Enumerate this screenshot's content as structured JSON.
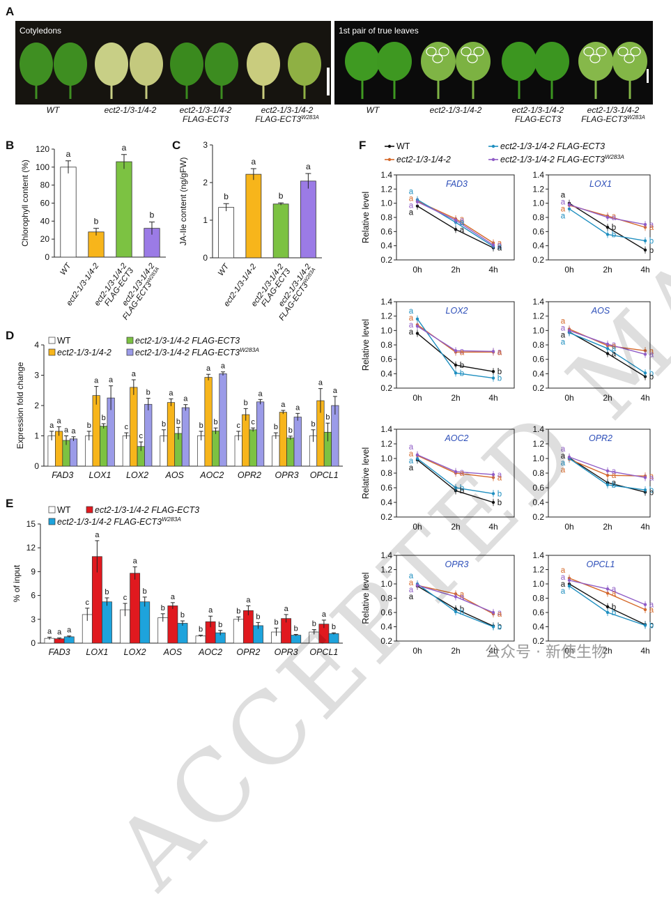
{
  "panel_letters": {
    "A": "A",
    "B": "B",
    "C": "C",
    "D": "D",
    "E": "E",
    "F": "F"
  },
  "panel_A": {
    "left_title": "Cotyledons",
    "right_title": "1st pair of true leaves",
    "labels_left": [
      {
        "l1": "WT",
        "l2": "",
        "l3": ""
      },
      {
        "l1": "ect2-1/3-1/4-2",
        "l2": "",
        "l3": ""
      },
      {
        "l1": "ect2-1/3-1/4-2",
        "l2": "FLAG-ECT3",
        "l3": ""
      },
      {
        "l1": "ect2-1/3-1/4-2",
        "l2": "FLAG-ECT3",
        "l3": "W283A"
      }
    ],
    "labels_right": [
      {
        "l1": "WT",
        "l2": "",
        "l3": ""
      },
      {
        "l1": "ect2-1/3-1/4-2",
        "l2": "",
        "l3": ""
      },
      {
        "l1": "ect2-1/3-1/4-2",
        "l2": "FLAG-ECT3",
        "l3": ""
      },
      {
        "l1": "ect2-1/3-1/4-2",
        "l2": "FLAG-ECT3",
        "l3": "W283A"
      }
    ],
    "leaf_pairs_left": [
      {
        "c1": "#3f8f22",
        "c2": "#3e8e21"
      },
      {
        "c1": "#c8cf86",
        "c2": "#c4c97e"
      },
      {
        "c1": "#3a8a1e",
        "c2": "#3c8c20"
      },
      {
        "c1": "#c9cc7e",
        "c2": "#8fb044"
      }
    ],
    "leaf_pairs_right": [
      {
        "c1": "#3f9a22",
        "c2": "#3e9821",
        "spots": 0
      },
      {
        "c1": "#7fb445",
        "c2": "#7cb242",
        "spots": 3
      },
      {
        "c1": "#3c9620",
        "c2": "#3b9520",
        "spots": 0
      },
      {
        "c1": "#86b84a",
        "c2": "#83b647",
        "spots": 3
      }
    ]
  },
  "chart_data": [
    {
      "panel": "B",
      "type": "bar",
      "ylabel": "Chlorophyll content (%)",
      "ylim": [
        0,
        120
      ],
      "yticks": [
        0,
        20,
        40,
        60,
        80,
        100,
        120
      ],
      "categories": [
        {
          "l1": "WT",
          "l2": "",
          "l3": ""
        },
        {
          "l1": "ect2-1/3-1/4-2",
          "l2": "",
          "l3": ""
        },
        {
          "l1": "ect2-1/3-1/4-2",
          "l2": "FLAG-ECT3",
          "l3": ""
        },
        {
          "l1": "ect2-1/3-1/4-2",
          "l2": "FLAG-ECT3",
          "l3": "W283A"
        }
      ],
      "values": [
        100,
        28,
        106,
        32
      ],
      "errors": [
        7,
        4,
        8,
        7
      ],
      "letters": [
        "a",
        "b",
        "a",
        "b"
      ],
      "colors": [
        "#ffffff",
        "#f7b51b",
        "#7cc242",
        "#9b7be6"
      ]
    },
    {
      "panel": "C",
      "type": "bar",
      "ylabel": "JA-Ile content (ng/gFW)",
      "ylim": [
        0,
        3
      ],
      "yticks": [
        0,
        1,
        2,
        3
      ],
      "categories": [
        {
          "l1": "WT",
          "l2": "",
          "l3": ""
        },
        {
          "l1": "ect2-1/3-1/4-2",
          "l2": "",
          "l3": ""
        },
        {
          "l1": "ect2-1/3-1/4-2",
          "l2": "FLAG-ECT3",
          "l3": ""
        },
        {
          "l1": "ect2-1/3-1/4-2",
          "l2": "FLAG-ECT3",
          "l3": "W283A"
        }
      ],
      "values": [
        1.34,
        2.22,
        1.43,
        2.04
      ],
      "errors": [
        0.1,
        0.15,
        0.03,
        0.2
      ],
      "letters": [
        "b",
        "a",
        "b",
        "a"
      ],
      "colors": [
        "#ffffff",
        "#f7b51b",
        "#7cc242",
        "#9b7be6"
      ]
    },
    {
      "panel": "D",
      "type": "bar",
      "ylabel": "Expression fold change",
      "ylim": [
        0,
        4
      ],
      "yticks": [
        0,
        1,
        2,
        3,
        4
      ],
      "categories": [
        "FAD3",
        "LOX1",
        "LOX2",
        "AOS",
        "AOC2",
        "OPR2",
        "OPR3",
        "OPCL1"
      ],
      "series": [
        {
          "name": "WT",
          "color": "#ffffff",
          "values": [
            1.0,
            1.0,
            1.0,
            1.0,
            1.0,
            1.0,
            1.0,
            1.0
          ],
          "errors": [
            0.15,
            0.15,
            0.1,
            0.2,
            0.15,
            0.15,
            0.1,
            0.2
          ],
          "letters": [
            "a",
            "b",
            "c",
            "b",
            "b",
            "c",
            "b",
            "b"
          ]
        },
        {
          "name": "ect2-1/3-1/4-2",
          "color": "#f7b51b",
          "values": [
            1.15,
            2.33,
            2.6,
            2.1,
            2.93,
            1.7,
            1.78,
            2.16
          ],
          "errors": [
            0.15,
            0.3,
            0.25,
            0.12,
            0.1,
            0.2,
            0.06,
            0.4
          ],
          "letters": [
            "a",
            "a",
            "a",
            "a",
            "a",
            "b",
            "a",
            "a"
          ]
        },
        {
          "name": "ect2-1/3-1/4-2 FLAG-ECT3",
          "color": "#7cc242",
          "values": [
            0.85,
            1.32,
            0.65,
            1.08,
            1.16,
            1.2,
            0.93,
            1.12
          ],
          "errors": [
            0.15,
            0.08,
            0.15,
            0.2,
            0.1,
            0.06,
            0.06,
            0.3
          ],
          "letters": [
            "a",
            "b",
            "c",
            "b",
            "b",
            "c",
            "b",
            "b"
          ]
        },
        {
          "name": "ect2-1/3-1/4-2 FLAG-ECT3W283A",
          "color": "#9b9be8",
          "values": [
            0.9,
            2.25,
            2.04,
            1.93,
            3.05,
            2.12,
            1.62,
            2.0
          ],
          "errors": [
            0.07,
            0.4,
            0.2,
            0.1,
            0.06,
            0.08,
            0.12,
            0.3
          ],
          "letters": [
            "a",
            "a",
            "b",
            "a",
            "a",
            "a",
            "a",
            "a"
          ]
        }
      ]
    },
    {
      "panel": "E",
      "type": "bar",
      "ylabel": "% of input",
      "ylim": [
        0,
        15
      ],
      "yticks": [
        0,
        3,
        6,
        9,
        12,
        15
      ],
      "categories": [
        "FAD3",
        "LOX1",
        "LOX2",
        "AOS",
        "AOC2",
        "OPR2",
        "OPR3",
        "OPCL1"
      ],
      "series": [
        {
          "name": "WT",
          "color": "#ffffff",
          "values": [
            0.6,
            3.6,
            4.2,
            3.2,
            0.9,
            3.0,
            1.4,
            1.4
          ],
          "errors": [
            0.15,
            0.8,
            0.8,
            0.5,
            0.1,
            0.3,
            0.5,
            0.3
          ],
          "letters": [
            "a",
            "c",
            "c",
            "b",
            "b",
            "b",
            "b",
            "b"
          ]
        },
        {
          "name": "ect2-1/3-1/4-2 FLAG-ECT3",
          "color": "#e0191f",
          "values": [
            0.55,
            10.9,
            8.8,
            4.7,
            2.7,
            4.1,
            3.1,
            2.4
          ],
          "errors": [
            0.1,
            2.0,
            0.8,
            0.4,
            0.7,
            0.6,
            0.5,
            0.5
          ],
          "letters": [
            "a",
            "a",
            "a",
            "a",
            "a",
            "a",
            "a",
            "a"
          ]
        },
        {
          "name": "ect2-1/3-1/4-2 FLAG-ECT3W283A",
          "color": "#1ea3dc",
          "values": [
            0.8,
            5.2,
            5.2,
            2.5,
            1.3,
            2.2,
            1.0,
            1.2
          ],
          "errors": [
            0.1,
            0.5,
            0.6,
            0.3,
            0.3,
            0.4,
            0.1,
            0.1
          ],
          "letters": [
            "a",
            "b",
            "b",
            "b",
            "b",
            "b",
            "b",
            "b"
          ]
        }
      ]
    },
    {
      "panel": "F",
      "type": "line",
      "ylabel": "Relative level",
      "x": [
        "0h",
        "2h",
        "4h"
      ],
      "ylim": [
        0.2,
        1.4
      ],
      "yticks": [
        0.2,
        0.4,
        0.6,
        0.8,
        1.0,
        1.2,
        1.4
      ],
      "legend": [
        {
          "name": "WT",
          "color": "#111111"
        },
        {
          "name": "ect2-1/3-1/4-2",
          "color": "#d5692a"
        },
        {
          "name": "ect2-1/3-1/4-2 FLAG-ECT3",
          "color": "#1f8fc0"
        },
        {
          "name": "ect2-1/3-1/4-2 FLAG-ECT3W283A",
          "color": "#8f5cc6"
        }
      ],
      "letter_colors": [
        "#111111",
        "#d5692a",
        "#1f8fc0",
        "#8f5cc6"
      ],
      "subplots": [
        {
          "gene": "FAD3",
          "series": [
            [
              0.96,
              0.63,
              0.37
            ],
            [
              1.03,
              0.78,
              0.44
            ],
            [
              1.05,
              0.73,
              0.39
            ],
            [
              1.02,
              0.76,
              0.41
            ]
          ],
          "letters": [
            [
              "a",
              "a",
              "a"
            ],
            [
              "a",
              "a",
              "a"
            ],
            [
              "a",
              "a",
              "a"
            ],
            [
              "a",
              "a",
              "a"
            ]
          ]
        },
        {
          "gene": "LOX1",
          "series": [
            [
              1.0,
              0.66,
              0.34
            ],
            [
              0.97,
              0.82,
              0.66
            ],
            [
              0.92,
              0.56,
              0.47
            ],
            [
              0.98,
              0.8,
              0.7
            ]
          ],
          "letters": [
            [
              "a",
              "b",
              "b"
            ],
            [
              "a",
              "a",
              "a"
            ],
            [
              "a",
              "b",
              "b"
            ],
            [
              "a",
              "a",
              "a"
            ]
          ]
        },
        {
          "gene": "LOX2",
          "series": [
            [
              0.96,
              0.52,
              0.43
            ],
            [
              1.08,
              0.7,
              0.7
            ],
            [
              1.16,
              0.41,
              0.34
            ],
            [
              1.06,
              0.72,
              0.71
            ]
          ],
          "letters": [
            [
              "a",
              "b",
              "b"
            ],
            [
              "a",
              "a",
              "a"
            ],
            [
              "a",
              "b",
              "b"
            ],
            [
              "a",
              "a",
              "a"
            ]
          ]
        },
        {
          "gene": "AOS",
          "series": [
            [
              0.98,
              0.68,
              0.36
            ],
            [
              1.02,
              0.79,
              0.72
            ],
            [
              0.97,
              0.75,
              0.41
            ],
            [
              1.0,
              0.81,
              0.67
            ]
          ],
          "letters": [
            [
              "a",
              "a",
              "b"
            ],
            [
              "a",
              "a",
              "a"
            ],
            [
              "a",
              "a",
              "b"
            ],
            [
              "a",
              "a",
              "a"
            ]
          ]
        },
        {
          "gene": "AOC2",
          "series": [
            [
              0.98,
              0.56,
              0.4
            ],
            [
              1.04,
              0.8,
              0.74
            ],
            [
              1.0,
              0.6,
              0.52
            ],
            [
              1.05,
              0.82,
              0.78
            ]
          ],
          "letters": [
            [
              "a",
              "b",
              "b"
            ],
            [
              "a",
              "a",
              "a"
            ],
            [
              "a",
              "b",
              "b"
            ],
            [
              "a",
              "a",
              "a"
            ]
          ]
        },
        {
          "gene": "OPR2",
          "series": [
            [
              1.01,
              0.67,
              0.54
            ],
            [
              0.99,
              0.77,
              0.76
            ],
            [
              1.0,
              0.64,
              0.57
            ],
            [
              1.02,
              0.83,
              0.74
            ]
          ],
          "letters": [
            [
              "a",
              "a",
              "b"
            ],
            [
              "a",
              "a",
              "a"
            ],
            [
              "a",
              "b",
              "b"
            ],
            [
              "a",
              "a",
              "a"
            ]
          ]
        },
        {
          "gene": "OPR3",
          "series": [
            [
              0.97,
              0.65,
              0.41
            ],
            [
              0.98,
              0.86,
              0.58
            ],
            [
              1.0,
              0.61,
              0.4
            ],
            [
              0.98,
              0.82,
              0.6
            ]
          ],
          "letters": [
            [
              "a",
              "b",
              "b"
            ],
            [
              "a",
              "a",
              "a"
            ],
            [
              "a",
              "b",
              "b"
            ],
            [
              "a",
              "a",
              "a"
            ]
          ]
        },
        {
          "gene": "OPCL1",
          "series": [
            [
              1.0,
              0.68,
              0.43
            ],
            [
              1.08,
              0.87,
              0.64
            ],
            [
              0.97,
              0.6,
              0.42
            ],
            [
              1.05,
              0.93,
              0.71
            ]
          ],
          "letters": [
            [
              "a",
              "b",
              "b"
            ],
            [
              "a",
              "a",
              "a"
            ],
            [
              "a",
              "b",
              "b"
            ],
            [
              "a",
              "a",
              "a"
            ]
          ]
        }
      ]
    }
  ],
  "watermark": "ACCEPTED MANUSCRIPT",
  "footer": "公众号 · 新使生物"
}
